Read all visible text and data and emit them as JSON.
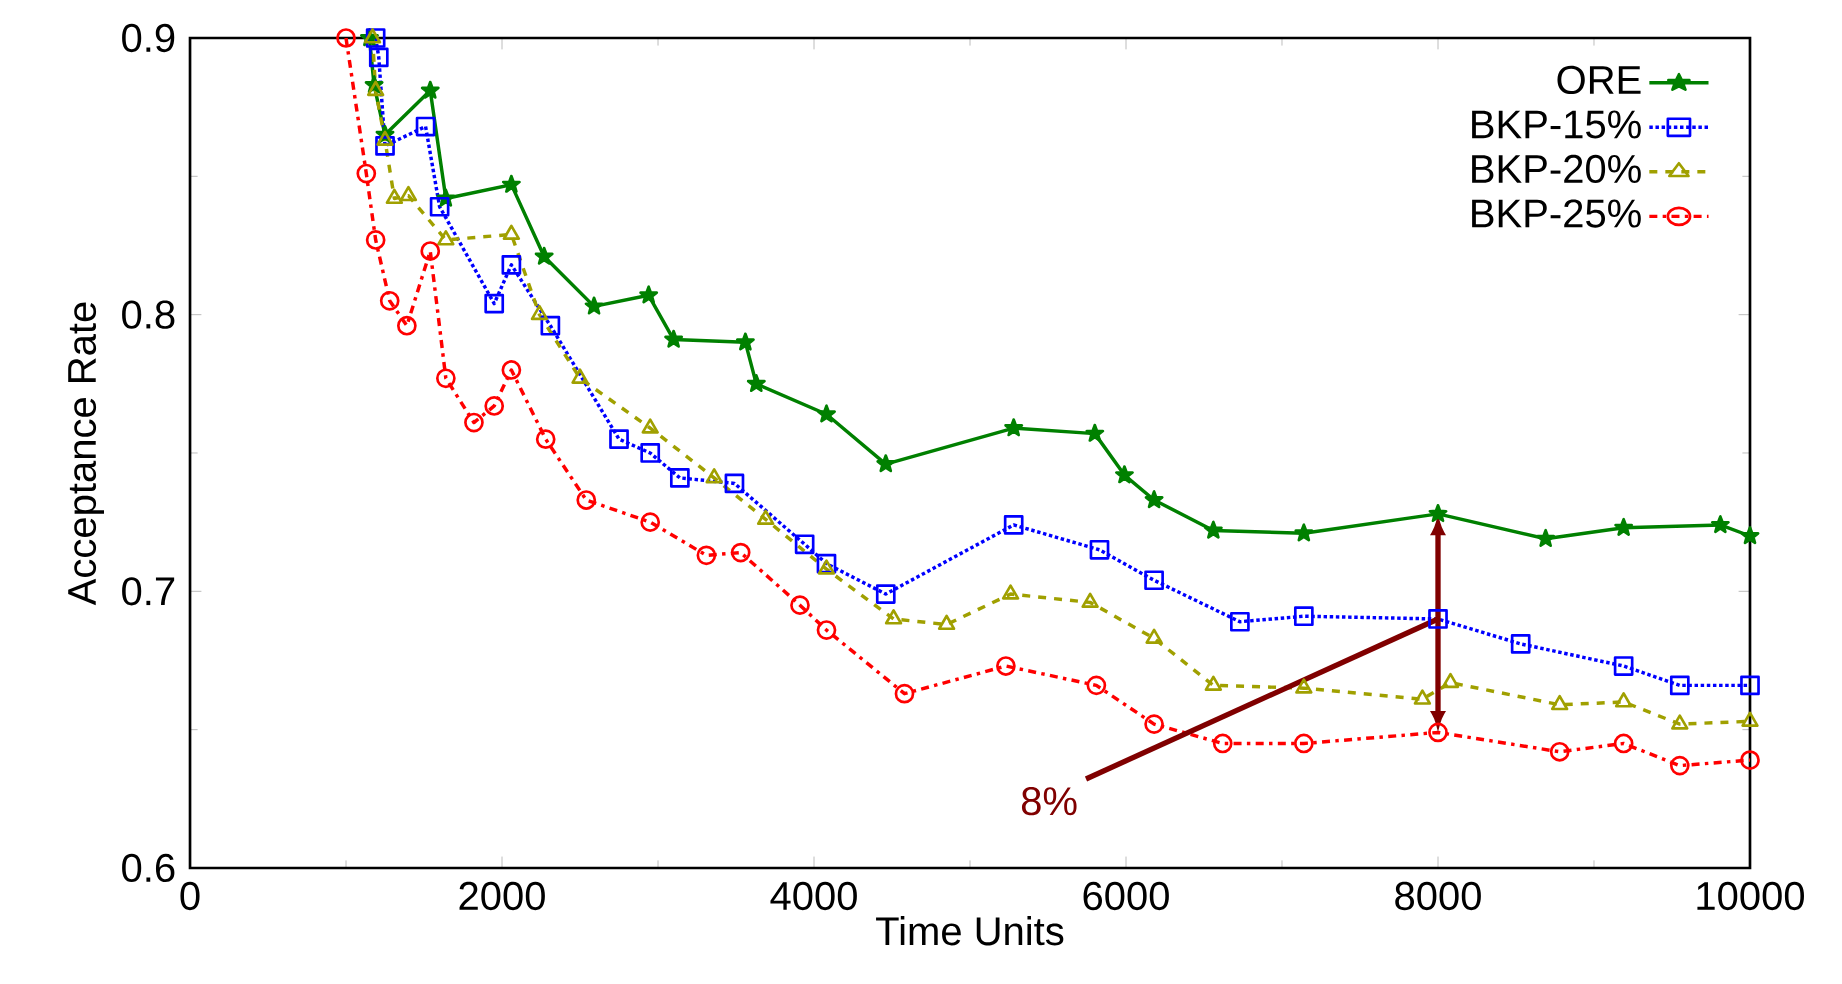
{
  "chart_data": {
    "type": "line",
    "xlabel": "Time Units",
    "ylabel": "Acceptance Rate",
    "xlim": [
      0,
      10000
    ],
    "ylim": [
      0.6,
      0.9
    ],
    "xticks": [
      0,
      2000,
      4000,
      6000,
      8000,
      10000
    ],
    "yticks": [
      0.6,
      0.7,
      0.8,
      0.9
    ],
    "legend": "top right",
    "grid": false,
    "series": [
      {
        "name": "ORE",
        "color": "#008000",
        "marker": "star",
        "line_style": "solid",
        "x": [
          1150,
          1180,
          1250,
          1540,
          1640,
          2060,
          2270,
          2590,
          2940,
          3100,
          3560,
          3630,
          4080,
          4460,
          5280,
          5800,
          5990,
          6180,
          6560,
          7140,
          8000,
          8690,
          9190,
          9810,
          10000
        ],
        "values": [
          0.9,
          0.883,
          0.865,
          0.881,
          0.842,
          0.847,
          0.821,
          0.803,
          0.807,
          0.791,
          0.79,
          0.775,
          0.764,
          0.746,
          0.759,
          0.757,
          0.742,
          0.733,
          0.722,
          0.721,
          0.728,
          0.719,
          0.723,
          0.724,
          0.72
        ]
      },
      {
        "name": "BKP-15%",
        "color": "#0000ff",
        "marker": "square",
        "line_style": "dotted",
        "x": [
          1190,
          1210,
          1250,
          1510,
          1600,
          1950,
          2060,
          2310,
          2750,
          2950,
          3140,
          3490,
          3940,
          4080,
          4460,
          5280,
          5830,
          6180,
          6730,
          7140,
          8000,
          8530,
          9190,
          9550,
          10000
        ],
        "values": [
          0.9,
          0.893,
          0.861,
          0.868,
          0.839,
          0.804,
          0.818,
          0.796,
          0.755,
          0.75,
          0.741,
          0.739,
          0.717,
          0.71,
          0.699,
          0.724,
          0.715,
          0.704,
          0.689,
          0.691,
          0.69,
          0.681,
          0.673,
          0.666,
          0.666
        ]
      },
      {
        "name": "BKP-20%",
        "color": "#a0a000",
        "marker": "triangle",
        "line_style": "dashed",
        "x": [
          1170,
          1190,
          1250,
          1310,
          1400,
          1640,
          2060,
          2240,
          2500,
          2950,
          3360,
          3690,
          4080,
          4510,
          4850,
          5260,
          5770,
          6180,
          6560,
          7140,
          7900,
          8080,
          8780,
          9190,
          9550,
          10000
        ],
        "values": [
          0.9,
          0.881,
          0.863,
          0.842,
          0.843,
          0.827,
          0.829,
          0.8,
          0.777,
          0.759,
          0.741,
          0.726,
          0.708,
          0.69,
          0.688,
          0.699,
          0.696,
          0.683,
          0.666,
          0.665,
          0.661,
          0.667,
          0.659,
          0.66,
          0.652,
          0.653
        ]
      },
      {
        "name": "BKP-25%",
        "color": "#ff0000",
        "marker": "circle",
        "line_style": "dashdot",
        "x": [
          1000,
          1130,
          1190,
          1280,
          1390,
          1540,
          1640,
          1820,
          1950,
          2060,
          2280,
          2540,
          2950,
          3310,
          3530,
          3910,
          4080,
          4580,
          5230,
          5810,
          6180,
          6620,
          7140,
          8000,
          8780,
          9190,
          9550,
          10000
        ],
        "values": [
          0.9,
          0.851,
          0.827,
          0.805,
          0.796,
          0.823,
          0.777,
          0.761,
          0.767,
          0.78,
          0.755,
          0.733,
          0.725,
          0.713,
          0.714,
          0.695,
          0.686,
          0.663,
          0.673,
          0.666,
          0.652,
          0.645,
          0.645,
          0.649,
          0.642,
          0.645,
          0.637,
          0.639
        ]
      }
    ],
    "annotations": [
      {
        "text": "8%",
        "x": 8000,
        "y": 0.69
      }
    ]
  }
}
